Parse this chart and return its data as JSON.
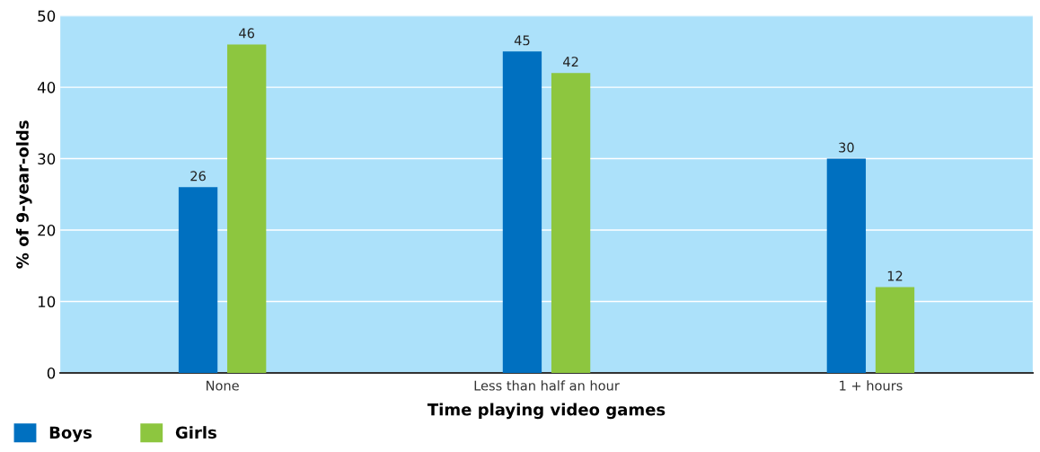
{
  "chart_data": {
    "type": "bar",
    "xlabel": "Time playing video games",
    "ylabel": "% of 9-year-olds",
    "categories": [
      "None",
      "Less than half an hour",
      "1 + hours"
    ],
    "series": [
      {
        "name": "Boys",
        "color": "#0070c0",
        "values": [
          26,
          45,
          30
        ]
      },
      {
        "name": "Girls",
        "color": "#8dc63f",
        "values": [
          46,
          42,
          12
        ]
      }
    ],
    "ylim": [
      0,
      50
    ],
    "yticks": [
      0,
      10,
      20,
      30,
      40,
      50
    ],
    "grid": "y",
    "legend": "bottom left",
    "data_labels": true
  }
}
